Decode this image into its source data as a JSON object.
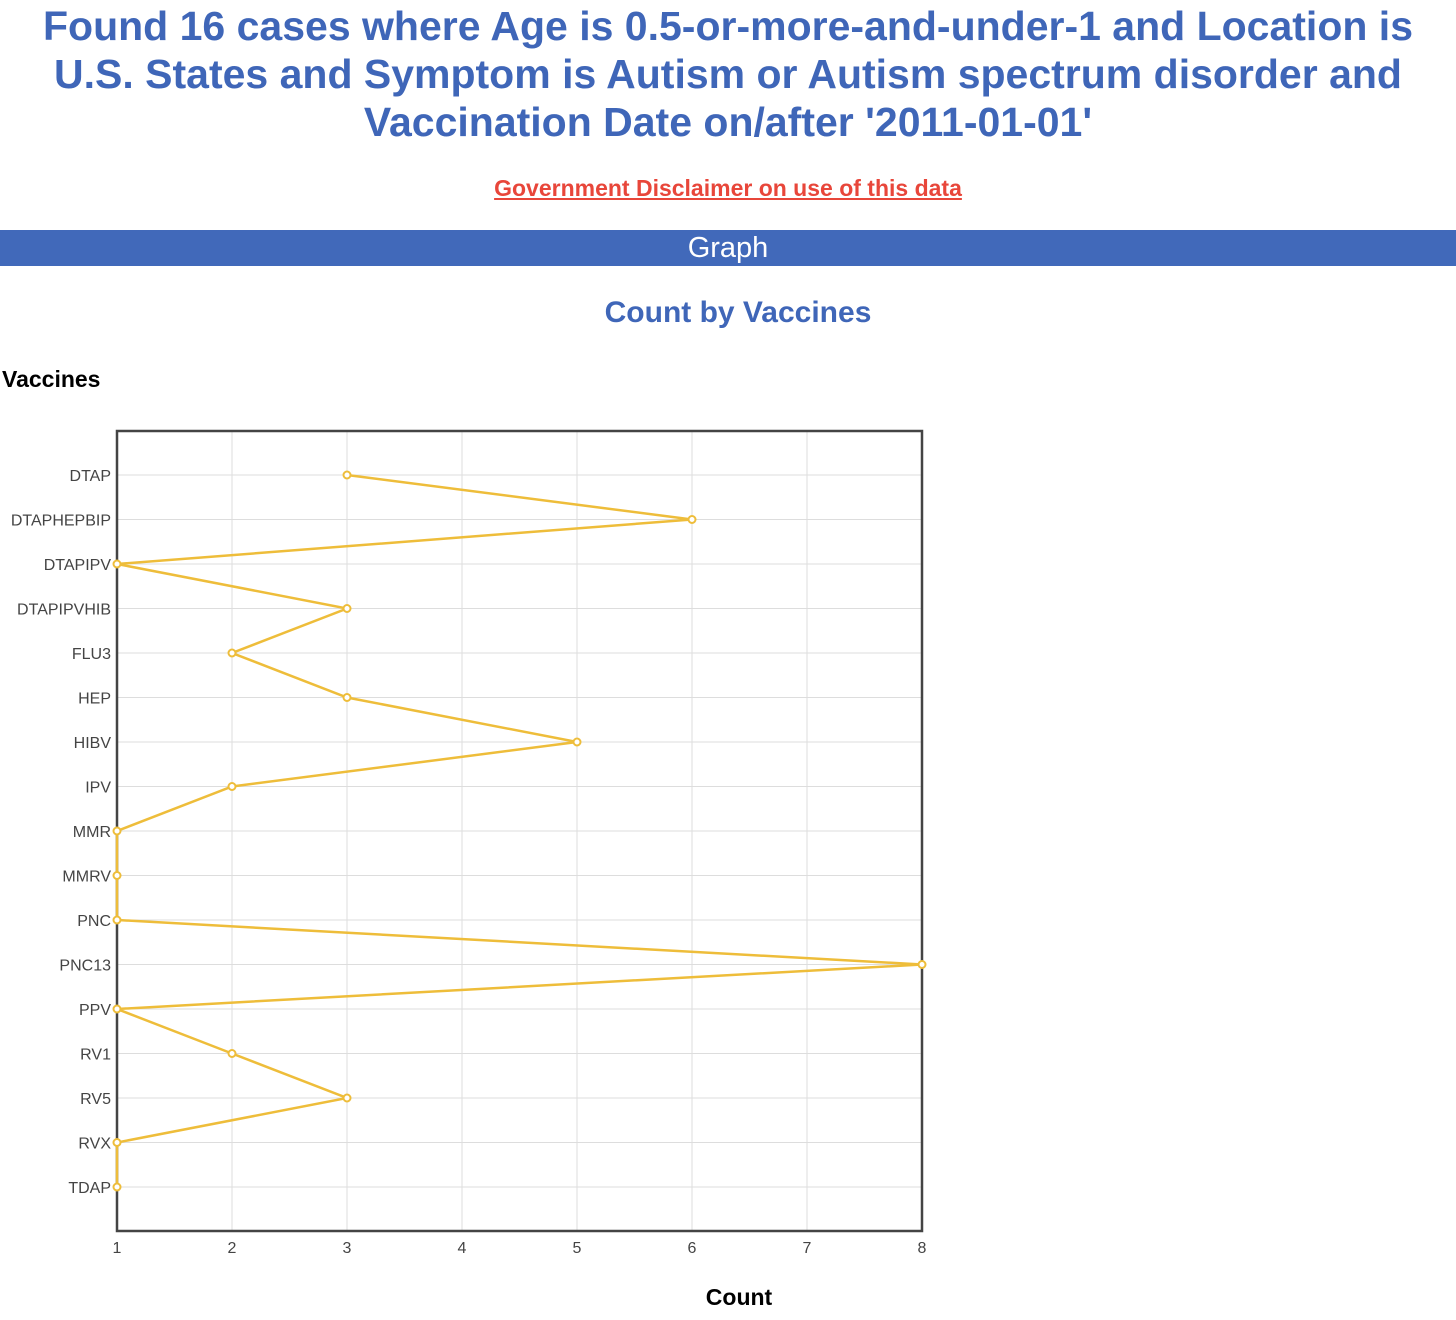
{
  "header": {
    "title": "Found 16 cases where Age is 0.5-or-more-and-under-1 and Location is U.S. States and Symptom is Autism or Autism spectrum disorder and Vaccination Date on/after '2011-01-01'",
    "disclaimer": "Government Disclaimer on use of this data"
  },
  "section_bar": "Graph",
  "chart_data": {
    "type": "line",
    "title": "Count by Vaccines",
    "ylabel": "Vaccines",
    "xlabel": "Count",
    "categories": [
      "DTAP",
      "DTAPHEPBIP",
      "DTAPIPV",
      "DTAPIPVHIB",
      "FLU3",
      "HEP",
      "HIBV",
      "IPV",
      "MMR",
      "MMRV",
      "PNC",
      "PNC13",
      "PPV",
      "RV1",
      "RV5",
      "RVX",
      "TDAP"
    ],
    "values": [
      3,
      6,
      1,
      3,
      2,
      3,
      5,
      2,
      1,
      1,
      1,
      8,
      1,
      2,
      3,
      1,
      1
    ],
    "xlim": [
      1,
      8
    ],
    "xticks": [
      "1",
      "2",
      "3",
      "4",
      "5",
      "6",
      "7",
      "8"
    ],
    "grid": true,
    "line_color": "#eebd3a"
  }
}
